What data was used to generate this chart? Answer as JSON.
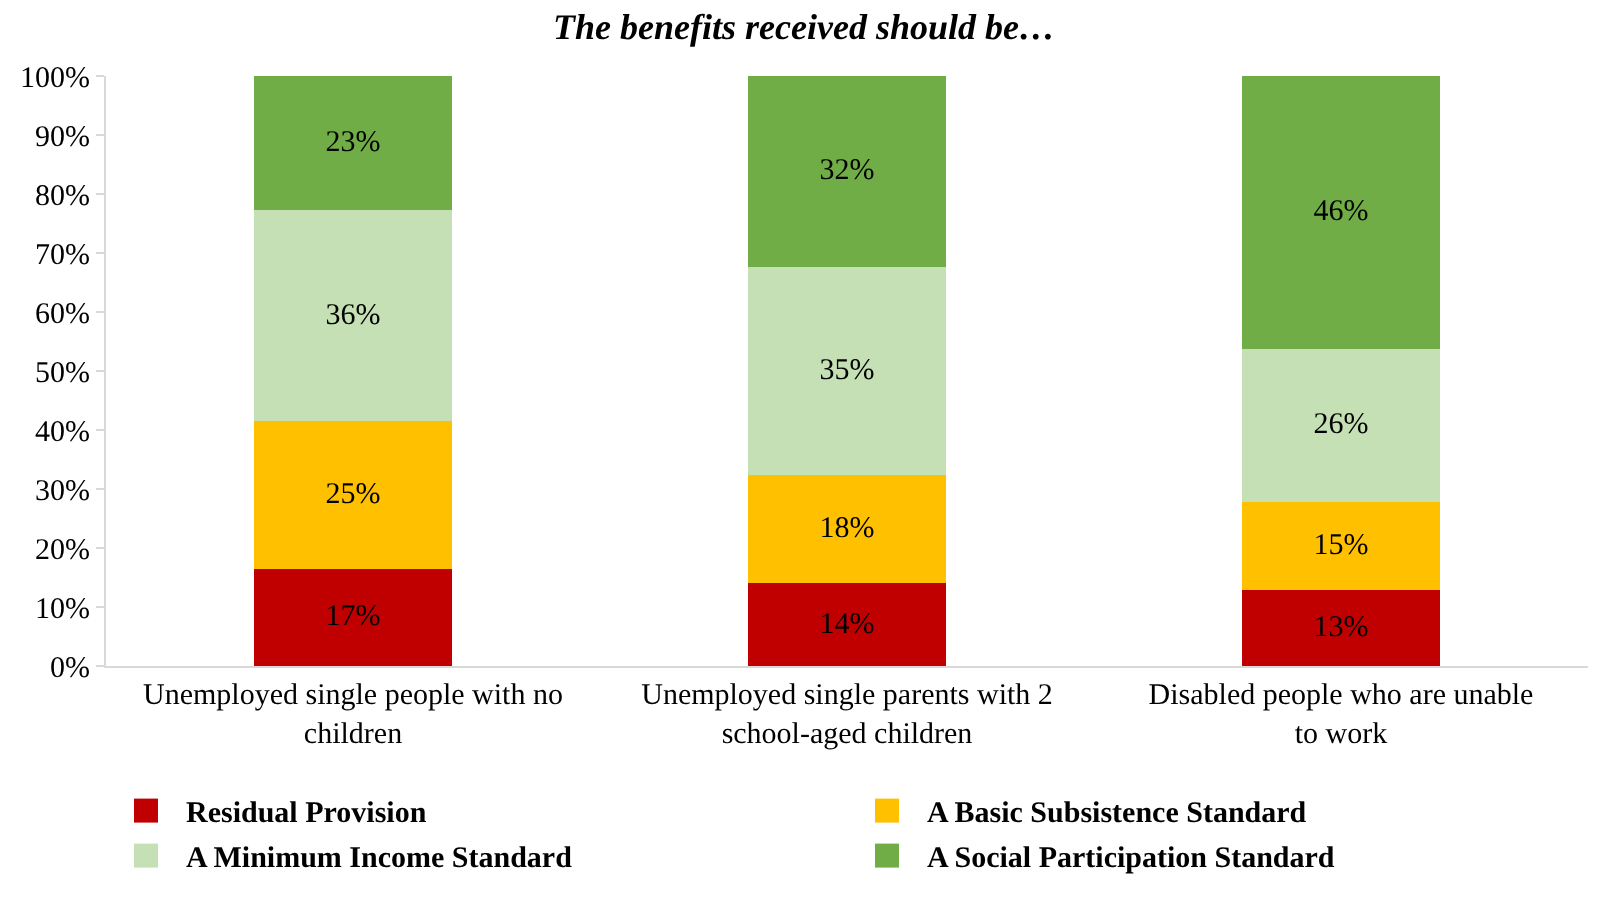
{
  "chart_data": {
    "type": "bar",
    "stacked": true,
    "title": "The benefits received should be…",
    "categories": [
      "Unemployed single people with no children",
      "Unemployed single parents with 2 school-aged children",
      "Disabled people who are unable to work"
    ],
    "series": [
      {
        "name": "Residual Provision",
        "color": "#c00000",
        "values": [
          16.5,
          14,
          12.8
        ],
        "value_labels": [
          "17%",
          "14%",
          "13%"
        ]
      },
      {
        "name": "A Basic Subsistence Standard",
        "color": "#ffc000",
        "values": [
          25,
          18.3,
          15
        ],
        "value_labels": [
          "25%",
          "18%",
          "15%"
        ]
      },
      {
        "name": "A Minimum Income Standard",
        "color": "#c5e0b4",
        "values": [
          35.8,
          35.4,
          26
        ],
        "value_labels": [
          "36%",
          "35%",
          "26%"
        ]
      },
      {
        "name": "A Social Participation Standard",
        "color": "#70ad47",
        "values": [
          22.7,
          32.3,
          46.2
        ],
        "value_labels": [
          "23%",
          "32%",
          "46%"
        ]
      }
    ],
    "ylim": [
      0,
      100
    ],
    "yticks": [
      {
        "value": 0,
        "label": "0%"
      },
      {
        "value": 10,
        "label": "10%"
      },
      {
        "value": 20,
        "label": "20%"
      },
      {
        "value": 30,
        "label": "30%"
      },
      {
        "value": 40,
        "label": "40%"
      },
      {
        "value": 50,
        "label": "50%"
      },
      {
        "value": 60,
        "label": "60%"
      },
      {
        "value": 70,
        "label": "70%"
      },
      {
        "value": 80,
        "label": "80%"
      },
      {
        "value": 90,
        "label": "90%"
      },
      {
        "value": 100,
        "label": "100%"
      }
    ],
    "legend": "bottom"
  }
}
